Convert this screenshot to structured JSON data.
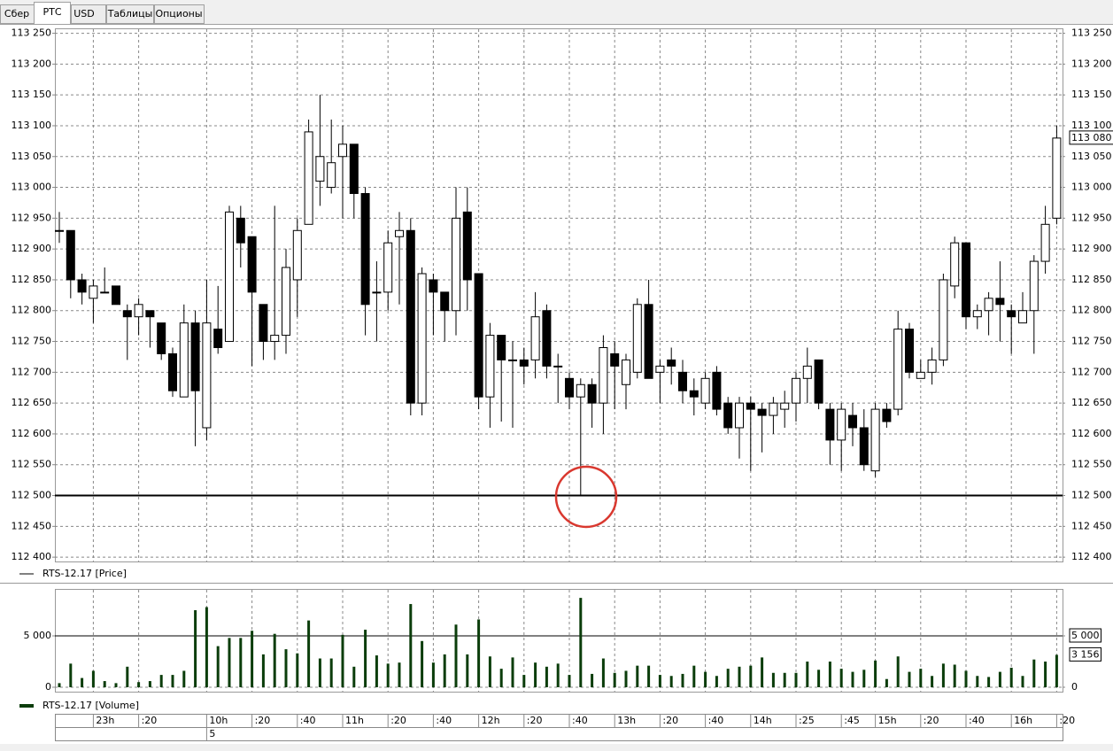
{
  "tabs": [
    "Сбер",
    "РТС",
    "USD",
    "Таблицы",
    "Опционы"
  ],
  "chart_data": [
    {
      "type": "candlestick",
      "up_color": "#ffffff",
      "down_color": "#000000",
      "ylim": [
        112393,
        113258
      ],
      "yticks": [
        {
          "value": 112400,
          "label": "112 400"
        },
        {
          "value": 112450,
          "label": "112 450"
        },
        {
          "value": 112500,
          "label": "112 500"
        },
        {
          "value": 112550,
          "label": "112 550"
        },
        {
          "value": 112600,
          "label": "112 600"
        },
        {
          "value": 112650,
          "label": "112 650"
        },
        {
          "value": 112700,
          "label": "112 700"
        },
        {
          "value": 112750,
          "label": "112 750"
        },
        {
          "value": 112800,
          "label": "112 800"
        },
        {
          "value": 112850,
          "label": "112 850"
        },
        {
          "value": 112900,
          "label": "112 900"
        },
        {
          "value": 112950,
          "label": "112 950"
        },
        {
          "value": 113000,
          "label": "113 000"
        },
        {
          "value": 113050,
          "label": "113 050"
        },
        {
          "value": 113100,
          "label": "113 100"
        },
        {
          "value": 113150,
          "label": "113 150"
        },
        {
          "value": 113200,
          "label": "113 200"
        },
        {
          "value": 113250,
          "label": "113 250"
        }
      ],
      "grid": true,
      "hline": 112500,
      "series": [
        {
          "name": "RTS-12.17 [Price]",
          "open": [
            112930,
            112930,
            112850,
            112820,
            112830,
            112840,
            112800,
            112790,
            112800,
            112780,
            112730,
            112660,
            112780,
            112610,
            112770,
            112750,
            112950,
            112920,
            112810,
            112750,
            112760,
            112850,
            112940,
            113010,
            113000,
            113050,
            113070,
            112990,
            112830,
            112830,
            112920,
            112930,
            112650,
            112850,
            112830,
            112800,
            112960,
            112860,
            112660,
            112760,
            112720,
            112720,
            112720,
            112800,
            112710,
            112690,
            112660,
            112680,
            112650,
            112730,
            112680,
            112700,
            112810,
            112700,
            112720,
            112700,
            112670,
            112650,
            112700,
            112650,
            112610,
            112650,
            112640,
            112630,
            112640,
            112650,
            112690,
            112720,
            112640,
            112590,
            112630,
            112610,
            112540,
            112640,
            112640,
            112770,
            112690,
            112700,
            112720,
            112840,
            112910,
            112790,
            112800,
            112820,
            112800,
            112780,
            112800,
            112880,
            112950
          ],
          "high": [
            112960,
            112930,
            112860,
            112850,
            112870,
            112840,
            112810,
            112820,
            112800,
            112780,
            112740,
            112810,
            112800,
            112850,
            112840,
            112970,
            112970,
            112920,
            112810,
            112970,
            112900,
            112950,
            113110,
            113150,
            113110,
            113100,
            113070,
            113000,
            112880,
            112930,
            112960,
            112950,
            112870,
            112860,
            112830,
            113000,
            113000,
            112860,
            112780,
            112760,
            112750,
            112740,
            112830,
            112810,
            112730,
            112700,
            112690,
            112690,
            112760,
            112750,
            112730,
            112820,
            112850,
            112720,
            112740,
            112720,
            112690,
            112700,
            112710,
            112660,
            112660,
            112660,
            112650,
            112660,
            112670,
            112700,
            112740,
            112720,
            112650,
            112650,
            112650,
            112640,
            112650,
            112650,
            112800,
            112780,
            112720,
            112740,
            112860,
            112920,
            112910,
            112810,
            112830,
            112880,
            112810,
            112830,
            112890,
            112970,
            113100
          ],
          "low": [
            112910,
            112820,
            112810,
            112780,
            112830,
            112810,
            112720,
            112760,
            112740,
            112720,
            112660,
            112660,
            112580,
            112590,
            112730,
            112750,
            112870,
            112710,
            112720,
            112720,
            112730,
            112790,
            112940,
            112970,
            112990,
            112950,
            112950,
            112760,
            112750,
            112800,
            112810,
            112630,
            112630,
            112760,
            112750,
            112760,
            112800,
            112640,
            112610,
            112620,
            112610,
            112680,
            112690,
            112690,
            112650,
            112640,
            112500,
            112610,
            112600,
            112640,
            112640,
            112690,
            112690,
            112650,
            112680,
            112650,
            112630,
            112640,
            112630,
            112600,
            112560,
            112540,
            112570,
            112600,
            112610,
            112620,
            112650,
            112640,
            112550,
            112540,
            112580,
            112540,
            112530,
            112610,
            112630,
            112690,
            112690,
            112680,
            112710,
            112820,
            112770,
            112770,
            112760,
            112750,
            112730,
            112780,
            112730,
            112860,
            112940
          ],
          "close": [
            112930,
            112850,
            112830,
            112840,
            112830,
            112810,
            112790,
            112810,
            112790,
            112730,
            112670,
            112780,
            112670,
            112780,
            112740,
            112960,
            112910,
            112830,
            112750,
            112760,
            112870,
            112930,
            113090,
            113050,
            113040,
            113070,
            112990,
            112810,
            112830,
            112910,
            112930,
            112650,
            112860,
            112830,
            112800,
            112950,
            112850,
            112660,
            112760,
            112720,
            112720,
            112710,
            112790,
            112710,
            112710,
            112660,
            112680,
            112650,
            112740,
            112710,
            112720,
            112810,
            112690,
            112710,
            112710,
            112670,
            112660,
            112690,
            112640,
            112610,
            112650,
            112640,
            112630,
            112650,
            112650,
            112690,
            112710,
            112650,
            112590,
            112640,
            112610,
            112550,
            112640,
            112620,
            112770,
            112700,
            112700,
            112720,
            112850,
            112910,
            112790,
            112800,
            112820,
            112810,
            112790,
            112800,
            112880,
            112940,
            113080
          ],
          "close_labels": [
            null,
            null,
            null,
            null,
            null,
            null,
            null,
            null,
            null,
            null,
            null,
            null,
            null,
            null,
            null,
            null,
            null,
            null,
            null,
            null,
            null,
            null,
            null,
            null,
            null,
            null,
            null,
            null,
            null,
            null,
            null,
            null,
            null,
            null,
            null,
            null,
            null,
            null,
            null,
            null,
            null,
            null,
            null,
            null,
            null,
            null,
            null,
            null,
            null,
            null,
            null,
            null,
            null,
            null,
            null,
            null,
            null,
            null,
            null,
            null,
            null,
            null,
            null,
            null,
            null,
            null,
            null,
            null,
            null,
            null,
            null,
            null,
            null,
            null,
            null,
            null,
            null,
            null,
            null,
            null,
            null,
            null,
            null,
            null,
            null,
            null,
            null,
            null,
            "113 080"
          ]
        }
      ]
    },
    {
      "type": "bar",
      "ylim": [
        -430,
        9570
      ],
      "yticks": [
        0,
        {
          "value": 5000,
          "label": "5 000"
        }
      ],
      "grid": true,
      "hline": 5000,
      "categories": [
        null,
        null,
        null,
        "23h",
        null,
        null,
        null,
        ":20",
        null,
        null,
        null,
        null,
        null,
        "10h",
        null,
        null,
        null,
        ":20",
        null,
        null,
        null,
        ":40",
        null,
        null,
        null,
        "11h",
        null,
        null,
        null,
        ":20",
        null,
        null,
        null,
        ":40",
        null,
        null,
        null,
        "12h",
        null,
        null,
        null,
        ":20",
        null,
        null,
        null,
        ":40",
        null,
        null,
        null,
        "13h",
        null,
        null,
        null,
        ":20",
        null,
        null,
        null,
        ":40",
        null,
        null,
        null,
        "14h",
        null,
        null,
        null,
        ":25",
        null,
        null,
        null,
        ":45",
        null,
        null,
        "15h",
        null,
        null,
        null,
        ":20",
        null,
        null,
        null,
        ":40",
        null,
        null,
        null,
        "16h",
        null,
        null,
        null,
        ":20"
      ],
      "day_labels": [
        null,
        null,
        null,
        null,
        null,
        null,
        null,
        null,
        null,
        null,
        null,
        null,
        null,
        "5",
        null,
        null,
        null,
        null,
        null,
        null,
        null,
        null,
        null,
        null,
        null,
        null,
        null,
        null,
        null,
        null,
        null,
        null,
        null,
        null,
        null,
        null,
        null,
        null,
        null,
        null,
        null,
        null,
        null,
        null,
        null,
        null,
        null,
        null,
        null,
        null,
        null,
        null,
        null,
        null,
        null,
        null,
        null,
        null,
        null,
        null,
        null,
        null,
        null,
        null,
        null,
        null,
        null,
        null,
        null,
        null,
        null,
        null,
        null,
        null,
        null,
        null,
        null,
        null,
        null,
        null,
        null,
        null,
        null,
        null,
        null,
        null,
        null,
        null,
        null
      ],
      "series": [
        {
          "name": "RTS-12.17 [Volume]",
          "color": "#0b3d0b",
          "values": [
            400,
            2300,
            900,
            1600,
            600,
            400,
            2000,
            500,
            600,
            1200,
            1200,
            1600,
            7500,
            7800,
            4000,
            4800,
            4800,
            5500,
            3200,
            5200,
            3700,
            3300,
            6500,
            2800,
            2800,
            5100,
            2000,
            5600,
            3100,
            2300,
            2400,
            8100,
            4500,
            2400,
            3200,
            6100,
            3200,
            6600,
            3000,
            1800,
            2900,
            1200,
            2400,
            2000,
            2300,
            1200,
            8700,
            1300,
            2800,
            1400,
            1600,
            2100,
            2100,
            1200,
            1100,
            1300,
            2100,
            1500,
            1100,
            1800,
            2000,
            2100,
            2900,
            1400,
            1400,
            1400,
            2500,
            1700,
            2500,
            1800,
            1500,
            1700,
            2600,
            800,
            3000,
            1500,
            1800,
            1100,
            2300,
            2200,
            1600,
            1100,
            1000,
            1500,
            1900,
            1100,
            2700,
            2500,
            3156
          ],
          "value_labels": [
            null,
            null,
            null,
            null,
            null,
            null,
            null,
            null,
            null,
            null,
            null,
            null,
            null,
            null,
            null,
            null,
            null,
            null,
            null,
            null,
            null,
            null,
            null,
            null,
            null,
            null,
            null,
            null,
            null,
            null,
            null,
            null,
            null,
            null,
            null,
            null,
            null,
            null,
            null,
            null,
            null,
            null,
            null,
            null,
            null,
            null,
            null,
            null,
            null,
            null,
            null,
            null,
            null,
            null,
            null,
            null,
            null,
            null,
            null,
            null,
            null,
            null,
            null,
            null,
            null,
            null,
            null,
            null,
            null,
            null,
            null,
            null,
            null,
            null,
            null,
            null,
            null,
            null,
            null,
            null,
            null,
            null,
            null,
            null,
            null,
            null,
            null,
            null,
            "3 156"
          ]
        }
      ]
    }
  ]
}
